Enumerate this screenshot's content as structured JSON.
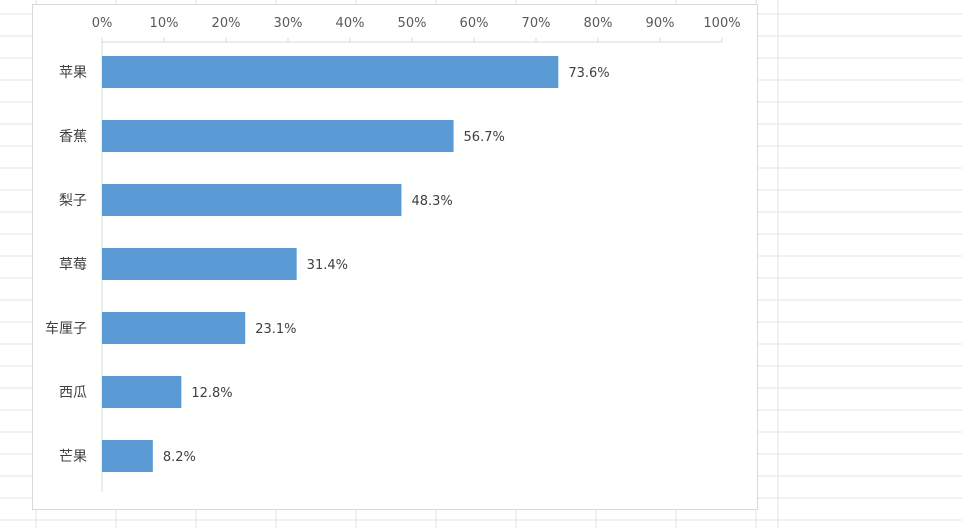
{
  "chart_data": {
    "type": "bar",
    "orientation": "horizontal",
    "categories": [
      "苹果",
      "香蕉",
      "梨子",
      "草莓",
      "车厘子",
      "西瓜",
      "芒果"
    ],
    "values": [
      73.6,
      56.7,
      48.3,
      31.4,
      23.1,
      12.8,
      8.2
    ],
    "data_labels": [
      "73.6%",
      "56.7%",
      "48.3%",
      "31.4%",
      "23.1%",
      "12.8%",
      "8.2%"
    ],
    "x_ticks": [
      "0%",
      "10%",
      "20%",
      "30%",
      "40%",
      "50%",
      "60%",
      "70%",
      "80%",
      "90%",
      "100%"
    ],
    "xlim": [
      0,
      100
    ],
    "x_axis_position": "top",
    "grid": false,
    "legend": "none",
    "bar_color": "#5b9bd5"
  }
}
